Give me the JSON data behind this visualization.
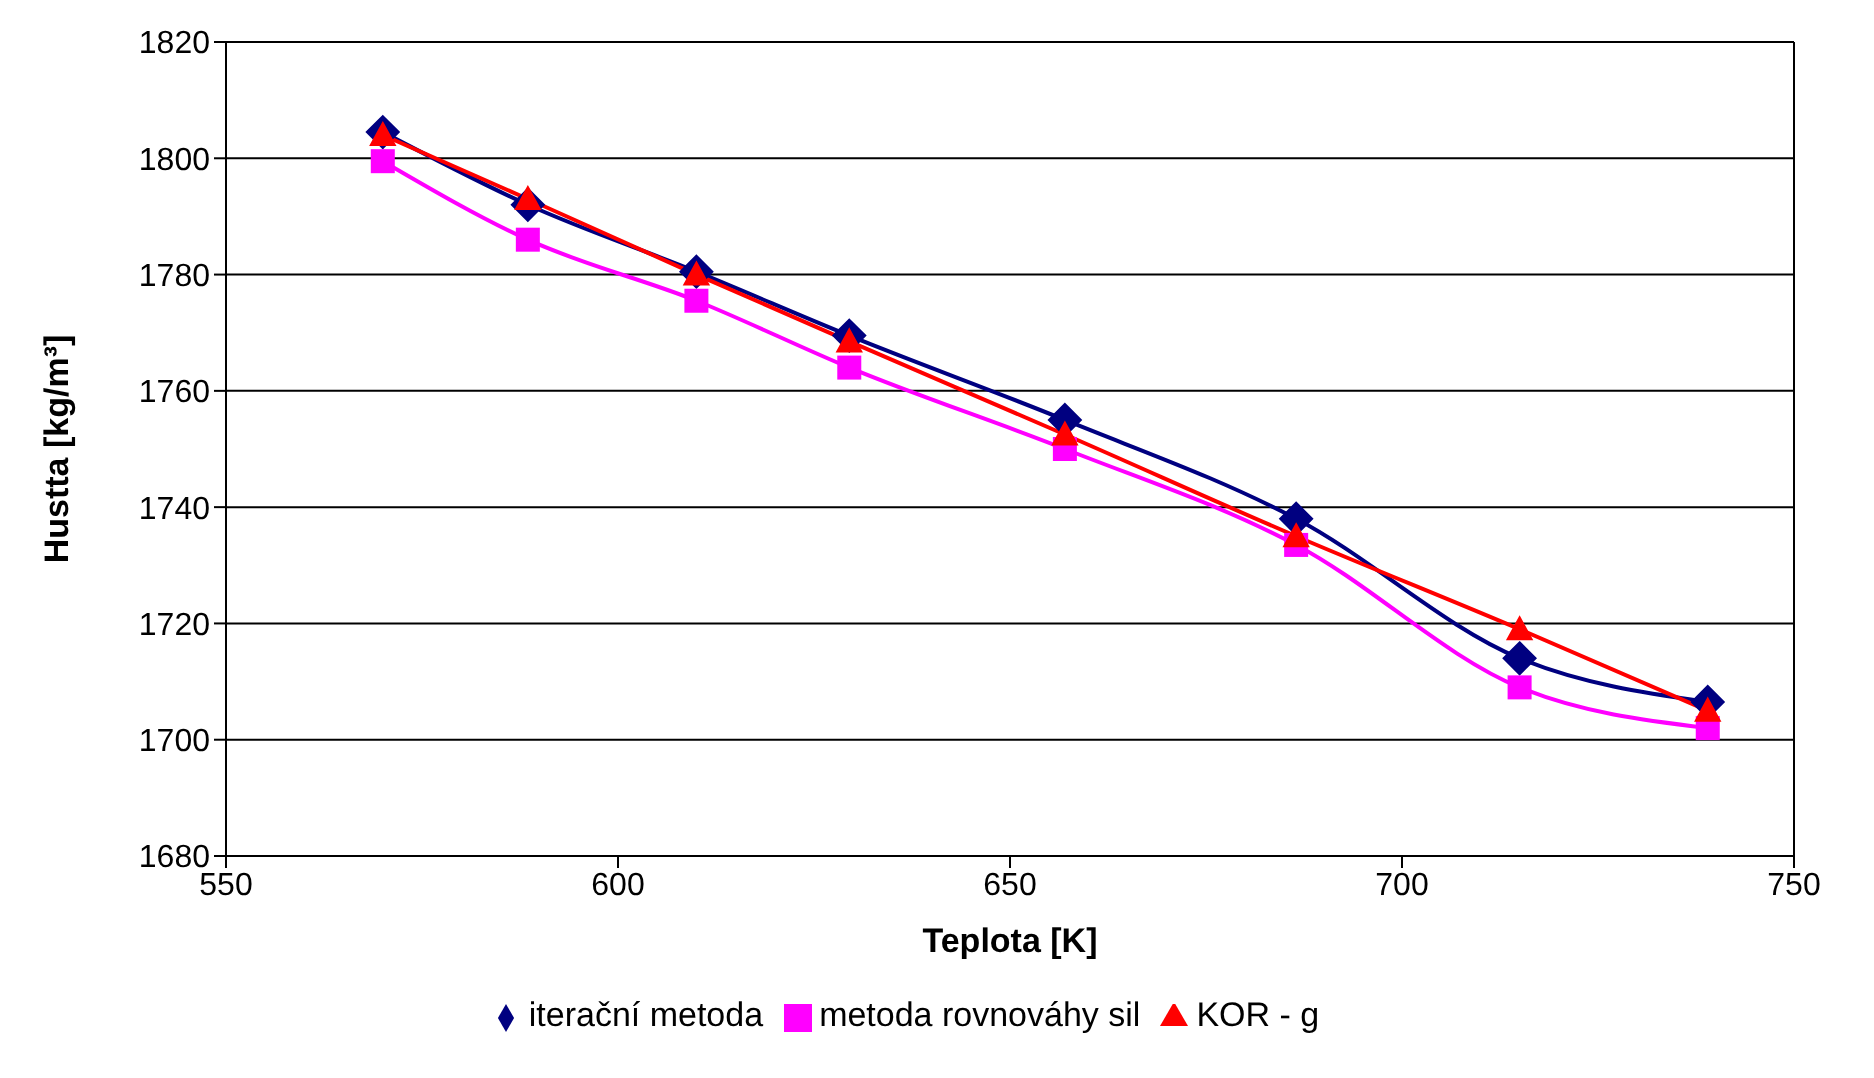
{
  "chart_data": {
    "type": "line",
    "xlabel": "Teplota [K]",
    "ylabel": "Hustta [kg/m³]",
    "x": [
      570,
      588.5,
      610,
      629.5,
      657,
      686.5,
      715,
      739
    ],
    "series": [
      {
        "name": "iterační metoda",
        "color": "#000080",
        "marker": "diamond",
        "values": [
          1804.5,
          1792,
          1780.5,
          1769.5,
          1755,
          1738,
          1714,
          1706.5
        ]
      },
      {
        "name": "metoda rovnováhy sil",
        "color": "#ff00ff",
        "marker": "square",
        "values": [
          1799.5,
          1786,
          1775.5,
          1764,
          1750,
          1733.5,
          1709,
          1702
        ]
      },
      {
        "name": "KOR - g",
        "color": "#ff0000",
        "marker": "triangle",
        "values": [
          1804,
          1793,
          1780,
          1768.5,
          1752.5,
          1735,
          1719,
          1705
        ]
      }
    ],
    "xlim": [
      550,
      750
    ],
    "xticks": [
      550,
      600,
      650,
      700,
      750
    ],
    "ylim": [
      1680,
      1820
    ],
    "yticks": [
      1680,
      1700,
      1720,
      1740,
      1760,
      1780,
      1800,
      1820
    ],
    "grid": "y",
    "legend": "bottom"
  }
}
